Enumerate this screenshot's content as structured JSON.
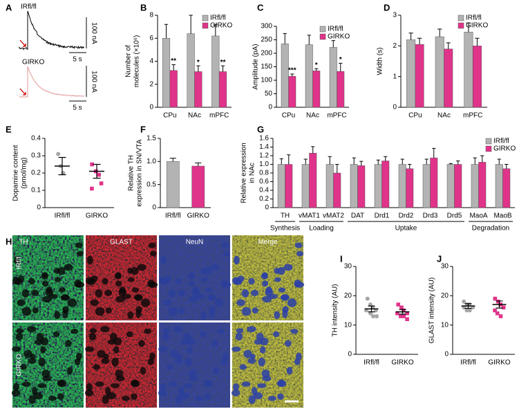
{
  "chart_data": [
    {
      "type": "bar",
      "label": "B",
      "ylabel": [
        "Number of",
        "molecules (×10⁶)"
      ],
      "categories": [
        "CPu",
        "NAc",
        "mPFC"
      ],
      "series": [
        {
          "name": "IRfl/fl",
          "color": "#b3b3b3",
          "values": [
            6.0,
            6.4,
            6.2
          ],
          "errors": [
            1.2,
            1.6,
            1.0
          ]
        },
        {
          "name": "GIRKO",
          "color": "#e0338a",
          "values": [
            3.2,
            3.1,
            3.1
          ],
          "errors": [
            0.5,
            0.5,
            0.5
          ]
        }
      ],
      "annotations": [
        "**",
        "*",
        "**"
      ],
      "ylim": [
        0,
        8
      ],
      "yticks": [
        0,
        2,
        4,
        6,
        8
      ],
      "legend": "top-right"
    },
    {
      "type": "bar",
      "label": "C",
      "ylabel": [
        "Amplitude (pA)"
      ],
      "categories": [
        "CPu",
        "NAc",
        "mPFC"
      ],
      "series": [
        {
          "name": "IRfl/fl",
          "color": "#b3b3b3",
          "values": [
            235,
            232,
            222
          ],
          "errors": [
            38,
            35,
            25
          ]
        },
        {
          "name": "GIRKO",
          "color": "#e0338a",
          "values": [
            115,
            135,
            133
          ],
          "errors": [
            8,
            8,
            30
          ]
        }
      ],
      "annotations": [
        "***",
        "*",
        "*"
      ],
      "ylim": [
        0,
        300
      ],
      "yticks": [
        0,
        50,
        100,
        150,
        200,
        250,
        300
      ],
      "legend": "top-right"
    },
    {
      "type": "bar",
      "label": "D",
      "ylabel": [
        "Width (s)"
      ],
      "categories": [
        "CPu",
        "NAc",
        "mPFC"
      ],
      "series": [
        {
          "name": "IRfl/fl",
          "color": "#b3b3b3",
          "values": [
            2.2,
            2.3,
            2.45
          ],
          "errors": [
            0.22,
            0.25,
            0.3
          ]
        },
        {
          "name": "GIRKO",
          "color": "#e0338a",
          "values": [
            2.05,
            1.9,
            2.0
          ],
          "errors": [
            0.2,
            0.2,
            0.25
          ]
        }
      ],
      "ylim": [
        0,
        3
      ],
      "yticks": [
        0,
        1,
        2,
        3
      ],
      "legend": "top-right"
    },
    {
      "type": "dot",
      "label": "E",
      "ylabel": [
        "Dopamine content",
        "(pmol/mg)"
      ],
      "categories": [
        "IRfl/fl",
        "GIRKO"
      ],
      "colors": [
        "#a6a6a6",
        "#e0338a"
      ],
      "values": [
        0.24,
        0.21
      ],
      "errors": [
        0.05,
        0.04
      ],
      "points": [
        [
          0.31,
          0.24,
          0.2
        ],
        [
          0.25,
          0.21,
          0.19,
          0.14,
          0.11
        ]
      ],
      "ylim": [
        0,
        0.4
      ],
      "yticks": [
        0,
        0.1,
        0.2,
        0.3,
        0.4
      ]
    },
    {
      "type": "bar",
      "label": "F",
      "ylabel": [
        "Relative TH",
        "expression in SN/VTA"
      ],
      "categories": [
        "IRfl/fl",
        "GIRKO"
      ],
      "colors": [
        "#b3b3b3",
        "#e0338a"
      ],
      "values": [
        1.0,
        0.9
      ],
      "errors": [
        0.07,
        0.07
      ],
      "ylim": [
        0,
        1.5
      ],
      "yticks": [
        0,
        0.5,
        {
          "value": 1,
          "label": "1.0"
        },
        1.5
      ]
    },
    {
      "type": "bar",
      "label": "G",
      "ylabel": [
        "Relative expression",
        "in NAc"
      ],
      "categories": [
        "TH",
        "vMAT1",
        "vMAT2",
        "DAT",
        "Drd1",
        "Drd2",
        "Drd3",
        "Drd5",
        "MaoA",
        "MaoB"
      ],
      "category_groups": [
        "Synthesis",
        "Loading",
        "Loading",
        "Uptake",
        "Uptake",
        "Uptake",
        "Uptake",
        "Uptake",
        "Degradation",
        "Degradation"
      ],
      "series": [
        {
          "name": "IRfl/fl",
          "color": "#b3b3b3",
          "values": [
            1.0,
            1.0,
            1.0,
            1.0,
            1.0,
            1.0,
            1.0,
            1.0,
            1.0,
            1.0
          ],
          "errors": [
            0.13,
            0.12,
            0.18,
            0.15,
            0.1,
            0.12,
            0.12,
            0.02,
            0.15,
            0.12
          ]
        },
        {
          "name": "GIRKO",
          "color": "#e0338a",
          "values": [
            1.0,
            1.26,
            0.8,
            0.97,
            1.08,
            0.9,
            1.15,
            1.0,
            1.05,
            0.9
          ],
          "errors": [
            0.22,
            0.15,
            0.2,
            0.1,
            0.1,
            0.1,
            0.22,
            0.08,
            0.15,
            0.1
          ]
        }
      ],
      "ylim": [
        0,
        1.6
      ],
      "yticks": [
        0,
        0.2,
        0.4,
        0.6,
        0.8,
        {
          "value": 1,
          "label": "1.0"
        },
        1.2,
        1.4,
        1.6
      ],
      "legend": "top-right"
    },
    {
      "type": "dot",
      "label": "I",
      "ylabel": [
        "TH intensity (AU)"
      ],
      "categories": [
        "IRfl/fl",
        "GIRKO"
      ],
      "colors": [
        "#a6a6a6",
        "#e0338a"
      ],
      "values": [
        15.5,
        14.5
      ],
      "errors": [
        1.0,
        0.8
      ],
      "points": [
        [
          19,
          17,
          16,
          15,
          15,
          14,
          13,
          13
        ],
        [
          17,
          16,
          15,
          14,
          14,
          13,
          13,
          12
        ]
      ],
      "ylim": [
        0,
        30
      ],
      "yticks": [
        0,
        10,
        20,
        30
      ]
    },
    {
      "type": "dot",
      "label": "J",
      "ylabel": [
        "GLAST intensity (AU)"
      ],
      "categories": [
        "IRfl/fl",
        "GIRKO"
      ],
      "colors": [
        "#a6a6a6",
        "#e0338a"
      ],
      "values": [
        16.5,
        17
      ],
      "errors": [
        0.8,
        1.2
      ],
      "points": [
        [
          18,
          17,
          17,
          16,
          16,
          15,
          15
        ],
        [
          19,
          18,
          17,
          16,
          15,
          14,
          13
        ]
      ],
      "ylim": [
        0,
        30
      ],
      "yticks": [
        0,
        10,
        20,
        30
      ]
    }
  ],
  "panel_a": {
    "label": "A",
    "traces": [
      {
        "name": "IRfl/fl",
        "scale_y": "100 nA",
        "scale_x": "5 s"
      },
      {
        "name": "GIRKO",
        "scale_y": "100 nA",
        "scale_x": "5 s"
      }
    ]
  },
  "panel_h": {
    "label": "H",
    "columns": [
      "TH",
      "GLAST",
      "NeuN",
      "Merge"
    ],
    "rows": [
      "IRf/f",
      "GIRKO"
    ]
  }
}
